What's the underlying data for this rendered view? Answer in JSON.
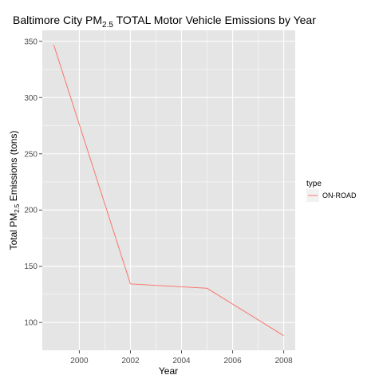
{
  "chart_data": {
    "type": "line",
    "title": {
      "prefix": "Baltimore City PM",
      "subscript": "2.5",
      "suffix": " TOTAL Motor Vehicle Emissions by Year"
    },
    "xlabel": "Year",
    "ylabel": {
      "prefix": "Total PM",
      "subscript": "2.5",
      "suffix": " Emissions (tons)"
    },
    "x": [
      1999,
      2002,
      2005,
      2008
    ],
    "series": [
      {
        "name": "ON-ROAD",
        "values": [
          346.82,
          134.31,
          130.43,
          88.28
        ],
        "color": "#f8766d"
      }
    ],
    "xlim": [
      1998.55,
      2008.45
    ],
    "ylim": [
      75.3,
      359.8
    ],
    "x_ticks": [
      2000,
      2002,
      2004,
      2006,
      2008
    ],
    "x_tick_labels": [
      "2000",
      "2002",
      "2004",
      "2006",
      "2008"
    ],
    "y_ticks": [
      100,
      150,
      200,
      250,
      300,
      350
    ],
    "y_tick_labels": [
      "100",
      "150",
      "200",
      "250",
      "300",
      "350"
    ],
    "grid": true,
    "panel_background": "#e5e5e5",
    "grid_color": "#ffffff",
    "legend": {
      "title": "type",
      "placement": "right"
    }
  }
}
